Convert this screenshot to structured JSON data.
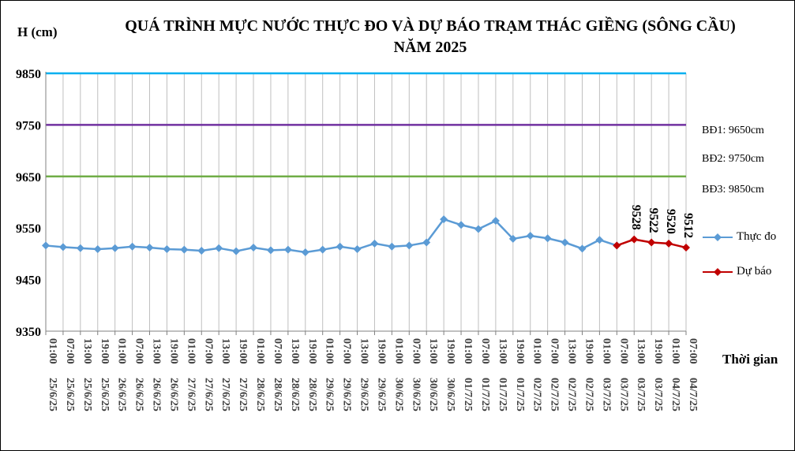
{
  "chart_data": {
    "type": "line",
    "title": "QUÁ TRÌNH MỰC NƯỚC THỰC ĐO VÀ DỰ BÁO TRẠM THÁC GIỀNG (SÔNG CẦU) NĂM 2025",
    "ylabel": "H (cm)",
    "xlabel": "Thời gian",
    "ylim": [
      9350,
      9850
    ],
    "yticks": [
      9350,
      9450,
      9550,
      9650,
      9750,
      9850
    ],
    "grid": "vertical",
    "legend_position": "right",
    "categories": [
      "01:00 25/6/25",
      "07:00 25/6/25",
      "13:00 25/6/25",
      "19:00 25/6/25",
      "01:00 26/6/25",
      "07:00 26/6/25",
      "13:00 26/6/25",
      "19:00 26/6/25",
      "01:00 27/6/25",
      "07:00 27/6/25",
      "13:00 27/6/25",
      "19:00 27/6/25",
      "01:00 28/6/25",
      "07:00 28/6/25",
      "13:00 28/6/25",
      "19:00 28/6/25",
      "01:00 29/6/25",
      "07:00 29/6/25",
      "13:00 29/6/25",
      "19:00 29/6/25",
      "01:00 30/6/25",
      "07:00 30/6/25",
      "13:00 30/6/25",
      "19:00 30/6/25",
      "01:00 01/7/25",
      "07:00 01/7/25",
      "13:00 01/7/25",
      "19:00 01/7/25",
      "01:00 02/7/25",
      "07:00 02/7/25",
      "13:00 02/7/25",
      "19:00 02/7/25",
      "01:00 03/7/25",
      "07:00 03/7/25",
      "13:00 03/7/25",
      "19:00 03/7/25",
      "01:00 04/7/25",
      "07:00 04/7/25"
    ],
    "series": [
      {
        "name": "Thực đo",
        "color": "#5B9BD5",
        "marker": "diamond",
        "values": [
          9516,
          9513,
          9511,
          9509,
          9511,
          9514,
          9512,
          9509,
          9508,
          9506,
          9511,
          9505,
          9512,
          9507,
          9508,
          9503,
          9508,
          9514,
          9509,
          9520,
          9514,
          9516,
          9522,
          9567,
          9556,
          9548,
          9564,
          9529,
          9535,
          9530,
          9522,
          9510,
          9527,
          9516,
          null,
          null,
          null,
          null
        ]
      },
      {
        "name": "Dự báo",
        "color": "#C00000",
        "marker": "diamond",
        "values": [
          null,
          null,
          null,
          null,
          null,
          null,
          null,
          null,
          null,
          null,
          null,
          null,
          null,
          null,
          null,
          null,
          null,
          null,
          null,
          null,
          null,
          null,
          null,
          null,
          null,
          null,
          null,
          null,
          null,
          null,
          null,
          null,
          null,
          9516,
          9528,
          9522,
          9520,
          9512
        ],
        "data_labels": [
          "9528",
          "9522",
          "9520",
          "9512"
        ]
      }
    ],
    "thresholds": [
      {
        "label": "BĐ1: 9650cm",
        "value": 9650,
        "color": "#70AD47"
      },
      {
        "label": "BĐ2: 9750cm",
        "value": 9750,
        "color": "#7030A0"
      },
      {
        "label": "BĐ3: 9850cm",
        "value": 9850,
        "color": "#00B0F0"
      }
    ]
  }
}
